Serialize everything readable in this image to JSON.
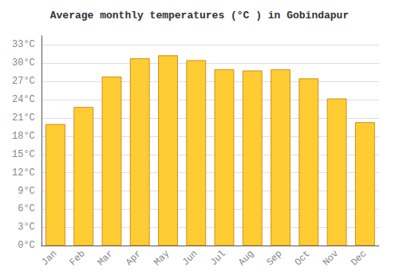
{
  "chart_data": {
    "type": "bar",
    "title": "Average monthly temperatures (°C ) in Gobindapur",
    "categories": [
      "Jan",
      "Feb",
      "Mar",
      "Apr",
      "May",
      "Jun",
      "Jul",
      "Aug",
      "Sep",
      "Oct",
      "Nov",
      "Dec"
    ],
    "values": [
      20.0,
      22.8,
      27.8,
      30.8,
      31.3,
      30.5,
      29.0,
      28.8,
      29.0,
      27.5,
      24.2,
      20.3
    ],
    "color": "#FFCC33",
    "ylim": [
      0,
      34.5
    ],
    "yticks": [
      {
        "value": 0,
        "label": "0°C"
      },
      {
        "value": 3,
        "label": "3°C"
      },
      {
        "value": 6,
        "label": "6°C"
      },
      {
        "value": 9,
        "label": "9°C"
      },
      {
        "value": 12,
        "label": "12°C"
      },
      {
        "value": 15,
        "label": "15°C"
      },
      {
        "value": 18,
        "label": "18°C"
      },
      {
        "value": 21,
        "label": "21°C"
      },
      {
        "value": 24,
        "label": "24°C"
      },
      {
        "value": 27,
        "label": "27°C"
      },
      {
        "value": 30,
        "label": "30°C"
      },
      {
        "value": 33,
        "label": "33°C"
      }
    ],
    "grid": true
  }
}
